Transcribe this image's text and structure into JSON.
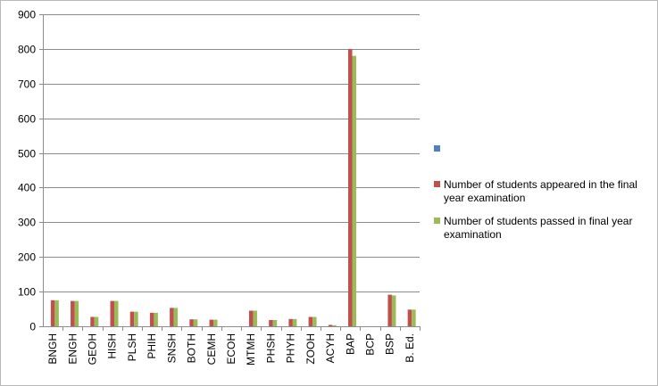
{
  "chart_data": {
    "type": "bar",
    "categories": [
      "BNGH",
      "ENGH",
      "GEOH",
      "HISH",
      "PLSH",
      "PHIH",
      "SNSH",
      "BOTH",
      "CEMH",
      "ECOH",
      "MTMH",
      "PHSH",
      "PHYH",
      "ZOOH",
      "ACYH",
      "BAP",
      "BCP",
      "BSP",
      "B. Ed."
    ],
    "series": [
      {
        "name": "",
        "color": "#4f81bd",
        "values": [
          0,
          0,
          0,
          0,
          0,
          0,
          0,
          0,
          0,
          0,
          0,
          0,
          0,
          0,
          0,
          0,
          0,
          0,
          0
        ]
      },
      {
        "name": "Number of students appeared in the final year examination",
        "color": "#c0504d",
        "values": [
          75,
          73,
          27,
          73,
          42,
          39,
          53,
          20,
          19,
          0,
          45,
          18,
          21,
          27,
          4,
          800,
          0,
          91,
          48
        ]
      },
      {
        "name": "Number of students passed in final year examination",
        "color": "#9bbb59",
        "values": [
          75,
          73,
          27,
          73,
          42,
          39,
          53,
          20,
          19,
          0,
          45,
          18,
          21,
          27,
          3,
          780,
          0,
          89,
          48
        ]
      }
    ],
    "ylim": [
      0,
      900
    ],
    "yticks": [
      0,
      100,
      200,
      300,
      400,
      500,
      600,
      700,
      800,
      900
    ],
    "grid": true,
    "legend": "right"
  }
}
